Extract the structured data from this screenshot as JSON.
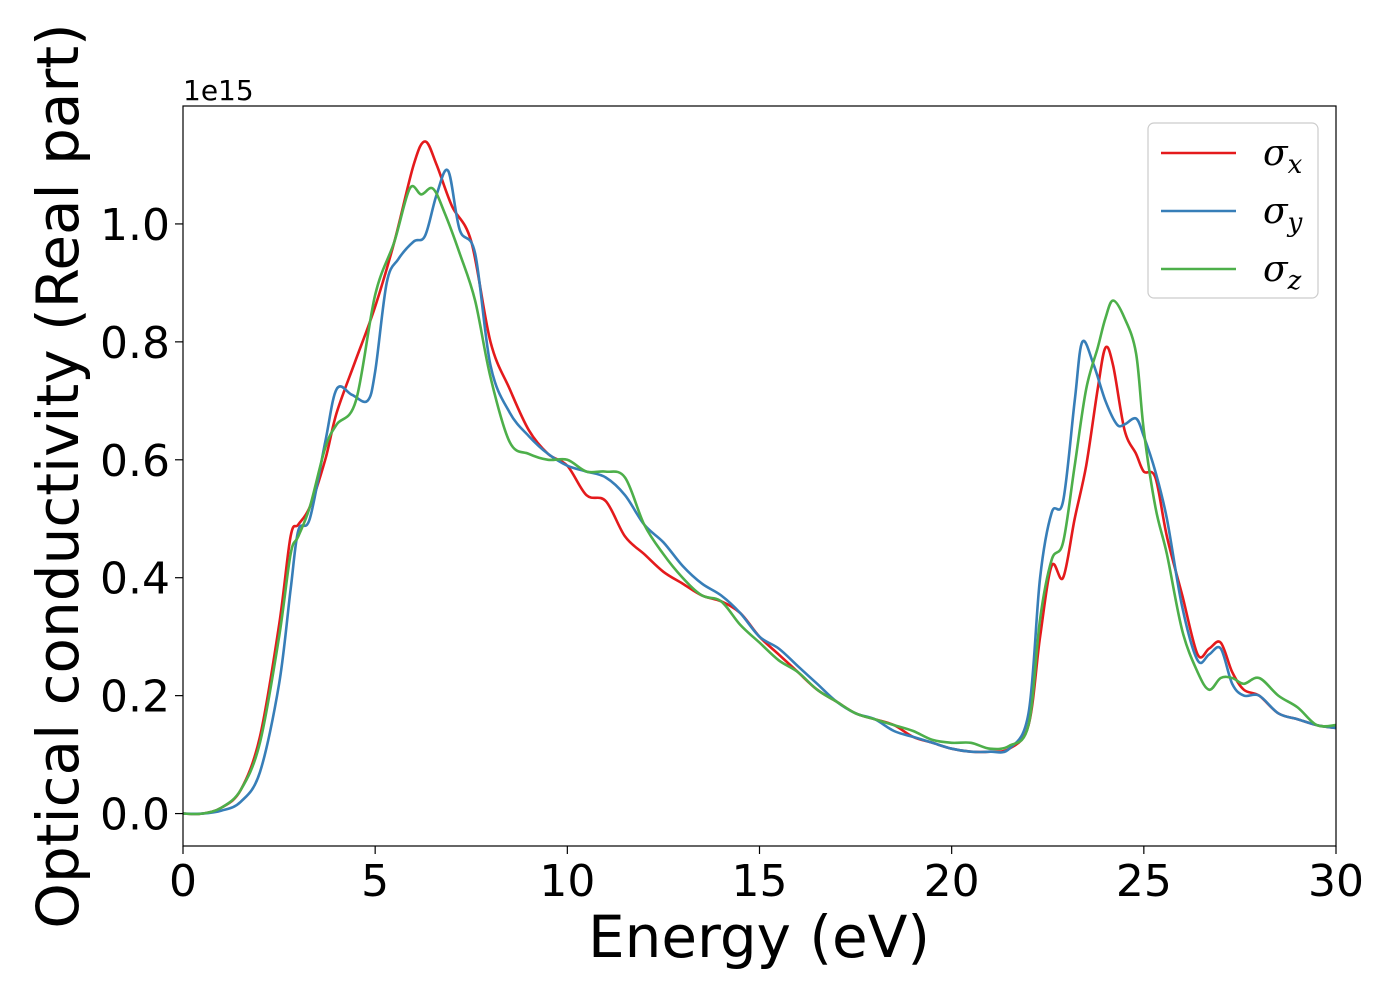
{
  "chart_data": {
    "type": "line",
    "title": "",
    "xlabel": "Energy (eV)",
    "ylabel": "Optical conductivity (Real part)",
    "y_offset_text": "1e15",
    "xlim": [
      0,
      30
    ],
    "ylim": [
      -0.055,
      1.2
    ],
    "xticks": [
      0,
      5,
      10,
      15,
      20,
      25,
      30
    ],
    "xtick_labels": [
      "0",
      "5",
      "10",
      "15",
      "20",
      "25",
      "30"
    ],
    "yticks": [
      0.0,
      0.2,
      0.4,
      0.6,
      0.8,
      1.0
    ],
    "ytick_labels": [
      "0.0",
      "0.2",
      "0.4",
      "0.6",
      "0.8",
      "1.0"
    ],
    "grid": false,
    "legend_position": "top-right",
    "series": [
      {
        "name": "σx",
        "legend_base": "σ",
        "legend_sub": "x",
        "color": "#e41a1c",
        "x": [
          0,
          0.5,
          1.0,
          1.5,
          2.0,
          2.5,
          2.8,
          3.0,
          3.3,
          3.7,
          4.0,
          4.5,
          5.0,
          5.5,
          6.0,
          6.3,
          6.6,
          7.0,
          7.5,
          8.0,
          8.5,
          9.0,
          9.5,
          10.0,
          10.5,
          11.0,
          11.5,
          12.0,
          12.5,
          13.0,
          13.5,
          14.0,
          14.5,
          15.0,
          15.5,
          16.0,
          16.5,
          17.0,
          17.5,
          18.0,
          18.5,
          19.0,
          19.5,
          20.0,
          20.5,
          21.0,
          21.5,
          22.0,
          22.3,
          22.6,
          22.9,
          23.2,
          23.5,
          23.8,
          24.0,
          24.2,
          24.5,
          24.8,
          25.0,
          25.3,
          25.6,
          26.0,
          26.4,
          26.7,
          27.0,
          27.3,
          27.6,
          28.0,
          28.5,
          29.0,
          29.5,
          30.0
        ],
        "y": [
          0.0,
          0.0,
          0.01,
          0.04,
          0.13,
          0.32,
          0.47,
          0.49,
          0.52,
          0.6,
          0.68,
          0.77,
          0.86,
          0.97,
          1.1,
          1.14,
          1.1,
          1.03,
          0.97,
          0.8,
          0.72,
          0.65,
          0.61,
          0.59,
          0.54,
          0.53,
          0.47,
          0.44,
          0.41,
          0.39,
          0.37,
          0.36,
          0.34,
          0.3,
          0.27,
          0.24,
          0.21,
          0.19,
          0.17,
          0.16,
          0.15,
          0.13,
          0.12,
          0.11,
          0.105,
          0.105,
          0.11,
          0.15,
          0.3,
          0.42,
          0.4,
          0.5,
          0.59,
          0.72,
          0.79,
          0.76,
          0.65,
          0.61,
          0.58,
          0.57,
          0.47,
          0.37,
          0.27,
          0.28,
          0.29,
          0.24,
          0.21,
          0.2,
          0.17,
          0.16,
          0.15,
          0.145
        ]
      },
      {
        "name": "σy",
        "legend_base": "σ",
        "legend_sub": "y",
        "color": "#377eb8",
        "x": [
          0,
          0.5,
          1.0,
          1.5,
          2.0,
          2.5,
          2.8,
          3.0,
          3.3,
          3.7,
          4.0,
          4.4,
          4.8,
          5.0,
          5.3,
          5.6,
          6.0,
          6.3,
          6.6,
          6.9,
          7.2,
          7.6,
          8.0,
          8.5,
          9.0,
          9.5,
          10.0,
          10.5,
          11.0,
          11.5,
          12.0,
          12.5,
          13.0,
          13.5,
          14.0,
          14.5,
          15.0,
          15.5,
          16.0,
          16.5,
          17.0,
          17.5,
          18.0,
          18.5,
          19.0,
          19.5,
          20.0,
          20.5,
          21.0,
          21.5,
          22.0,
          22.3,
          22.6,
          22.9,
          23.2,
          23.4,
          23.7,
          24.0,
          24.3,
          24.5,
          24.8,
          25.0,
          25.3,
          25.6,
          26.0,
          26.4,
          26.7,
          27.0,
          27.3,
          27.6,
          28.0,
          28.5,
          29.0,
          29.5,
          30.0
        ],
        "y": [
          0.0,
          0.0,
          0.005,
          0.02,
          0.07,
          0.22,
          0.38,
          0.48,
          0.5,
          0.63,
          0.72,
          0.71,
          0.7,
          0.75,
          0.9,
          0.94,
          0.97,
          0.98,
          1.05,
          1.09,
          0.99,
          0.95,
          0.76,
          0.68,
          0.64,
          0.61,
          0.59,
          0.58,
          0.57,
          0.54,
          0.49,
          0.46,
          0.42,
          0.39,
          0.37,
          0.34,
          0.3,
          0.28,
          0.25,
          0.22,
          0.19,
          0.17,
          0.16,
          0.14,
          0.13,
          0.12,
          0.11,
          0.105,
          0.105,
          0.11,
          0.17,
          0.4,
          0.51,
          0.53,
          0.7,
          0.8,
          0.76,
          0.7,
          0.66,
          0.66,
          0.67,
          0.64,
          0.58,
          0.5,
          0.35,
          0.26,
          0.27,
          0.28,
          0.22,
          0.2,
          0.2,
          0.17,
          0.16,
          0.15,
          0.145
        ]
      },
      {
        "name": "σz",
        "legend_base": "σ",
        "legend_sub": "z",
        "color": "#4daf4a",
        "x": [
          0,
          0.5,
          1.0,
          1.5,
          2.0,
          2.5,
          2.8,
          3.0,
          3.3,
          3.7,
          4.0,
          4.5,
          5.0,
          5.5,
          5.9,
          6.2,
          6.5,
          6.8,
          7.2,
          7.6,
          8.0,
          8.5,
          9.0,
          9.5,
          10.0,
          10.5,
          11.0,
          11.5,
          12.0,
          12.5,
          13.0,
          13.5,
          14.0,
          14.5,
          15.0,
          15.5,
          16.0,
          16.5,
          17.0,
          17.5,
          18.0,
          18.5,
          19.0,
          19.5,
          20.0,
          20.5,
          21.0,
          21.5,
          22.0,
          22.3,
          22.6,
          22.9,
          23.2,
          23.5,
          23.8,
          24.0,
          24.2,
          24.5,
          24.8,
          25.0,
          25.3,
          25.6,
          26.0,
          26.4,
          26.7,
          27.0,
          27.3,
          27.6,
          28.0,
          28.5,
          29.0,
          29.5,
          30.0
        ],
        "y": [
          0.0,
          0.0,
          0.01,
          0.04,
          0.12,
          0.3,
          0.44,
          0.47,
          0.52,
          0.62,
          0.66,
          0.7,
          0.88,
          0.97,
          1.06,
          1.05,
          1.06,
          1.02,
          0.95,
          0.87,
          0.74,
          0.63,
          0.61,
          0.6,
          0.6,
          0.58,
          0.58,
          0.57,
          0.49,
          0.44,
          0.4,
          0.37,
          0.36,
          0.32,
          0.29,
          0.26,
          0.24,
          0.21,
          0.19,
          0.17,
          0.16,
          0.15,
          0.14,
          0.125,
          0.12,
          0.12,
          0.11,
          0.115,
          0.15,
          0.33,
          0.43,
          0.46,
          0.59,
          0.72,
          0.79,
          0.84,
          0.87,
          0.84,
          0.78,
          0.65,
          0.52,
          0.44,
          0.31,
          0.24,
          0.21,
          0.23,
          0.23,
          0.22,
          0.23,
          0.2,
          0.18,
          0.15,
          0.15
        ]
      }
    ]
  }
}
